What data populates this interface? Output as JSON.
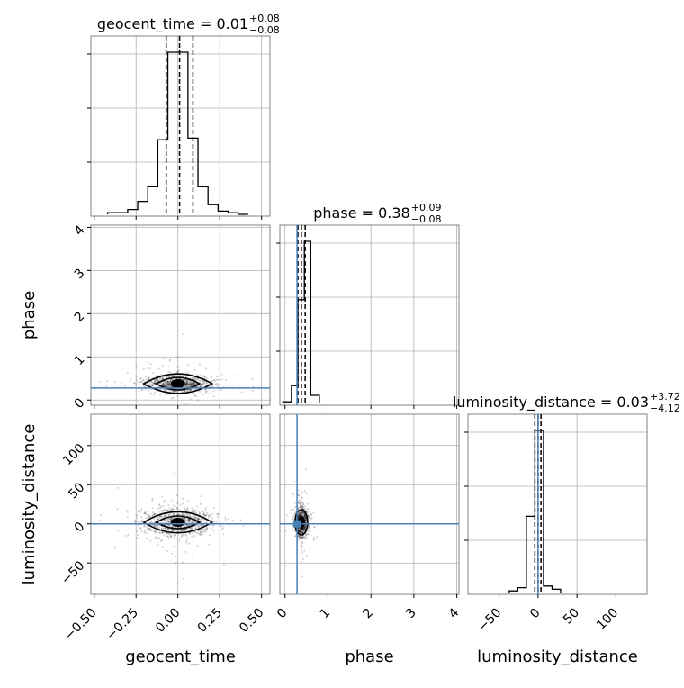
{
  "chart_data": {
    "type": "corner",
    "parameters": [
      "geocent_time",
      "phase",
      "luminosity_distance"
    ],
    "titles": [
      {
        "param": "geocent_time",
        "base": "geocent_time = 0.01",
        "plus": "+0.08",
        "minus": "−0.08"
      },
      {
        "param": "phase",
        "base": "phase = 0.38",
        "plus": "+0.09",
        "minus": "−0.08"
      },
      {
        "param": "luminosity_distance",
        "base": "luminosity_distance = 0.03",
        "plus": "+3.72",
        "minus": "−4.12"
      }
    ],
    "axis_labels": {
      "x": [
        "geocent_time",
        "phase",
        "luminosity_distance"
      ],
      "y": [
        "phase",
        "luminosity_distance"
      ]
    },
    "ticks": {
      "geocent_time": {
        "values": [
          -0.5,
          -0.25,
          0,
          0.25,
          0.5
        ],
        "labels": [
          "−0.50",
          "−0.25",
          "0.00",
          "0.25",
          "0.50"
        ]
      },
      "phase": {
        "values": [
          0,
          1,
          2,
          3,
          4
        ],
        "labels": [
          "0",
          "1",
          "2",
          "3",
          "4"
        ]
      },
      "luminosity_distance": {
        "values": [
          -50,
          0,
          50,
          100
        ],
        "labels": [
          "−50",
          "0",
          "50",
          "100"
        ]
      }
    },
    "ranges": {
      "geocent_time": [
        -0.52,
        0.55
      ],
      "phase": [
        -0.12,
        4.05
      ],
      "luminosity_distance": [
        -90,
        140
      ]
    },
    "truth": {
      "geocent_time": null,
      "phase": 0.28,
      "luminosity_distance": 0
    },
    "truth_color": "#4682b4",
    "histograms": {
      "geocent_time": {
        "bin_edges": [
          -0.42,
          -0.36,
          -0.3,
          -0.24,
          -0.18,
          -0.12,
          -0.06,
          0.0,
          0.06,
          0.12,
          0.18,
          0.24,
          0.3,
          0.36,
          0.42
        ],
        "counts": [
          1,
          1,
          3,
          8,
          17,
          46,
          100,
          100,
          47,
          17,
          6,
          2,
          1,
          0
        ],
        "quantiles": [
          -0.07,
          0.01,
          0.09
        ]
      },
      "phase": {
        "bin_edges": [
          -0.05,
          0.15,
          0.3,
          0.45,
          0.6,
          0.8
        ],
        "counts": [
          1,
          11,
          64,
          100,
          5
        ],
        "quantiles": [
          0.3,
          0.38,
          0.47
        ]
      },
      "luminosity_distance": {
        "bin_edges": [
          -37,
          -26,
          -15,
          -4,
          7,
          18,
          29
        ],
        "counts": [
          1,
          3,
          47,
          100,
          4,
          2
        ],
        "quantiles": [
          -4.1,
          0.03,
          3.75
        ]
      }
    },
    "grid": true
  }
}
